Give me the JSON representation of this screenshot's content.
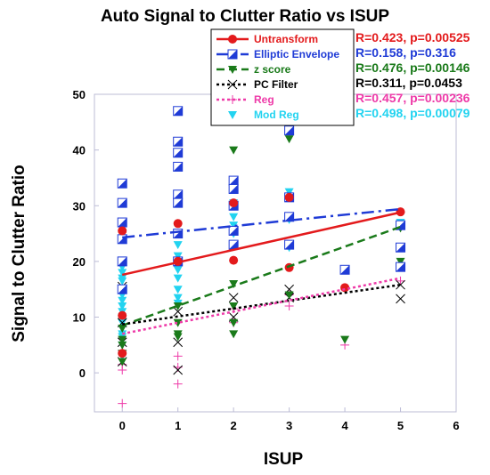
{
  "chart_data": {
    "type": "scatter",
    "title": "Auto Signal to Clutter Ratio vs ISUP",
    "xlabel": "ISUP",
    "ylabel": "Signal to Clutter Ratio",
    "xlim": [
      -0.5,
      6
    ],
    "ylim": [
      -7,
      50
    ],
    "xticks": [
      0,
      1,
      2,
      3,
      4,
      5,
      6
    ],
    "yticks": [
      0,
      10,
      20,
      30,
      40,
      50
    ],
    "grid": false,
    "legend_position": "top-right",
    "series": [
      {
        "name": "Untransform",
        "color": "#e31a1c",
        "marker": "circle",
        "line_style": "solid",
        "stat": "R=0.423, p=0.00525",
        "points": [
          [
            0,
            25.5
          ],
          [
            0,
            10.3
          ],
          [
            0,
            3.5
          ],
          [
            1,
            26.8
          ],
          [
            1,
            20.0
          ],
          [
            2,
            20.2
          ],
          [
            2,
            30.5
          ],
          [
            3,
            18.9
          ],
          [
            3,
            31.5
          ],
          [
            4,
            15.3
          ],
          [
            5,
            28.9
          ]
        ],
        "fit": [
          [
            0,
            17.6
          ],
          [
            5,
            28.8
          ]
        ]
      },
      {
        "name": "Elliptic Envelope",
        "color": "#1f3bd6",
        "marker": "half-square",
        "line_style": "dashdot",
        "stat": "R=0.158, p=0.316",
        "points": [
          [
            0,
            34.0
          ],
          [
            0,
            30.5
          ],
          [
            0,
            27.0
          ],
          [
            0,
            24.0
          ],
          [
            0,
            20.0
          ],
          [
            0,
            15.0
          ],
          [
            1,
            47.0
          ],
          [
            1,
            41.5
          ],
          [
            1,
            39.5
          ],
          [
            1,
            37.0
          ],
          [
            1,
            32.0
          ],
          [
            1,
            30.5
          ],
          [
            1,
            25.0
          ],
          [
            1,
            20.0
          ],
          [
            2,
            34.5
          ],
          [
            2,
            33.0
          ],
          [
            2,
            30.0
          ],
          [
            2,
            25.5
          ],
          [
            2,
            23.0
          ],
          [
            3,
            43.5
          ],
          [
            3,
            31.5
          ],
          [
            3,
            28.0
          ],
          [
            3,
            23.0
          ],
          [
            4,
            18.5
          ],
          [
            5,
            26.5
          ],
          [
            5,
            22.5
          ],
          [
            5,
            19.0
          ]
        ],
        "fit": [
          [
            0,
            24.3
          ],
          [
            5,
            29.4
          ]
        ]
      },
      {
        "name": "z score",
        "color": "#1a7a1a",
        "marker": "triangle-down",
        "line_style": "dashed",
        "stat": "R=0.476, p=0.00146",
        "points": [
          [
            0,
            8.0
          ],
          [
            0,
            6.0
          ],
          [
            0,
            5.0
          ],
          [
            0,
            3.5
          ],
          [
            0,
            2.0
          ],
          [
            1,
            12.0
          ],
          [
            1,
            9.0
          ],
          [
            1,
            7.0
          ],
          [
            1,
            6.5
          ],
          [
            2,
            40.0
          ],
          [
            2,
            16.0
          ],
          [
            2,
            12.0
          ],
          [
            2,
            9.0
          ],
          [
            2,
            7.0
          ],
          [
            3,
            42.0
          ],
          [
            3,
            14.0
          ],
          [
            4,
            6.0
          ],
          [
            5,
            26.0
          ],
          [
            5,
            20.0
          ]
        ],
        "fit": [
          [
            0,
            8.5
          ],
          [
            5,
            26.2
          ]
        ]
      },
      {
        "name": "PC Filter",
        "color": "#000000",
        "marker": "x",
        "line_style": "dotted",
        "stat": "R=0.311, p=0.0453",
        "points": [
          [
            0,
            15.5
          ],
          [
            0,
            9.0
          ],
          [
            0,
            5.5
          ],
          [
            0,
            2.0
          ],
          [
            1,
            11.0
          ],
          [
            1,
            5.5
          ],
          [
            1,
            0.5
          ],
          [
            2,
            13.5
          ],
          [
            2,
            10.0
          ],
          [
            3,
            15.0
          ],
          [
            3,
            13.5
          ],
          [
            5,
            15.8
          ],
          [
            5,
            13.3
          ]
        ],
        "fit": [
          [
            0,
            8.7
          ],
          [
            5,
            15.8
          ]
        ]
      },
      {
        "name": "Reg",
        "color": "#ee3aa8",
        "marker": "plus",
        "line_style": "dotted",
        "stat": "R=0.457, p=0.00236",
        "points": [
          [
            0,
            -5.5
          ],
          [
            0,
            4.0
          ],
          [
            0,
            1.5
          ],
          [
            0,
            0.5
          ],
          [
            1,
            -2.0
          ],
          [
            1,
            3.0
          ],
          [
            1,
            1.0
          ],
          [
            2,
            11.5
          ],
          [
            2,
            9.0
          ],
          [
            3,
            14.0
          ],
          [
            3,
            12.0
          ],
          [
            4,
            5.0
          ],
          [
            5,
            16.5
          ]
        ],
        "fit": [
          [
            0,
            7.0
          ],
          [
            5,
            17.0
          ]
        ]
      },
      {
        "name": "Mod Reg",
        "color": "#22d3f0",
        "marker": "triangle-down",
        "line_style": "none",
        "stat": "R=0.498, p=0.00079",
        "points": [
          [
            0,
            19.0
          ],
          [
            0,
            18.0
          ],
          [
            0,
            17.0
          ],
          [
            0,
            16.5
          ],
          [
            0,
            15.0
          ],
          [
            0,
            14.0
          ],
          [
            0,
            13.0
          ],
          [
            0,
            12.0
          ],
          [
            0,
            11.0
          ],
          [
            0,
            10.0
          ],
          [
            0,
            9.0
          ],
          [
            0,
            8.0
          ],
          [
            0,
            7.0
          ],
          [
            0,
            6.5
          ],
          [
            0,
            5.0
          ],
          [
            0,
            3.0
          ],
          [
            1,
            23.0
          ],
          [
            1,
            21.0
          ],
          [
            1,
            18.5
          ],
          [
            1,
            17.0
          ],
          [
            1,
            15.0
          ],
          [
            1,
            13.5
          ],
          [
            1,
            12.5
          ],
          [
            2,
            30.5
          ],
          [
            2,
            28.0
          ],
          [
            2,
            26.5
          ],
          [
            2,
            25.0
          ],
          [
            3,
            32.5
          ],
          [
            3,
            27.5
          ],
          [
            3,
            22.5
          ],
          [
            5,
            27.0
          ]
        ]
      }
    ]
  }
}
